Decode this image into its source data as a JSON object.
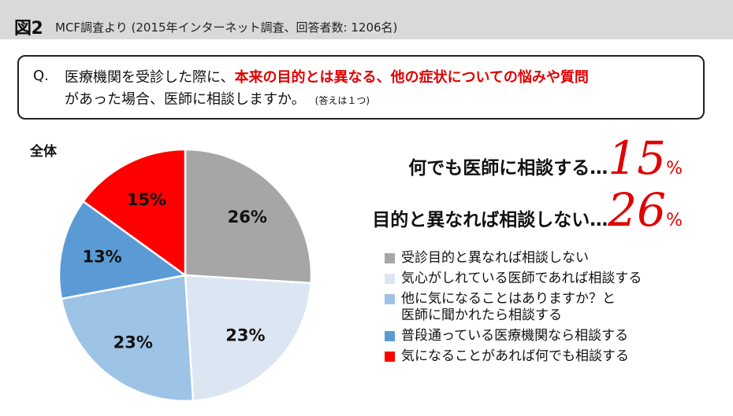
{
  "header": {
    "fig_label": "図2",
    "source": "MCF調査より (2015年インターネット調査、回答者数: 1206名)"
  },
  "question": {
    "marker": "Q.",
    "line1_prefix": "医療機関を受診した際に、",
    "line1_highlight": "本来の目的とは異なる、他の症状についての悩みや質問",
    "line2": "があった場合、医師に相談しますか。",
    "note": "(答えは１つ)"
  },
  "callouts": [
    {
      "text": "何でも医師に相談する…",
      "value": "15",
      "unit": "%"
    },
    {
      "text": "目的と異なれば相談しない…",
      "value": "26",
      "unit": "%"
    }
  ],
  "colors": {
    "accent_red": "#e00000"
  },
  "chart_data": {
    "type": "pie",
    "title": "全体",
    "start_angle_deg": 0,
    "direction": "clockwise",
    "slices": [
      {
        "label": "受診目的と異なれば相談しない",
        "value": 26,
        "display": "26%",
        "color": "#a6a6a6"
      },
      {
        "label": "気心がしれている医師であれば相談する",
        "value": 23,
        "display": "23%",
        "color": "#dce6f2"
      },
      {
        "label": "他に気になることはありますか？と\n医師に聞かれたら相談する",
        "value": 23,
        "display": "23%",
        "color": "#9dc3e6"
      },
      {
        "label": "普段通っている医療機関なら相談する",
        "value": 13,
        "display": "13%",
        "color": "#5b9bd5"
      },
      {
        "label": "気になることがあれば何でも相談する",
        "value": 15,
        "display": "15%",
        "color": "#ff0000"
      }
    ],
    "legend_position": "right"
  }
}
